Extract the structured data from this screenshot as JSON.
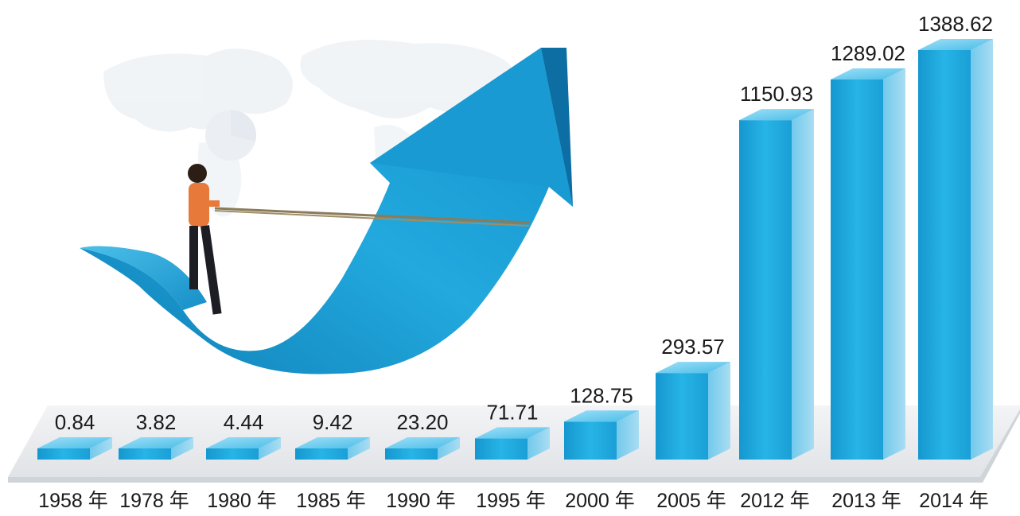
{
  "chart_data": {
    "type": "bar",
    "categories": [
      "1958 年",
      "1978 年",
      "1980 年",
      "1985 年",
      "1990 年",
      "1995 年",
      "2000 年",
      "2005 年",
      "2012 年",
      "2013 年",
      "2014 年"
    ],
    "values": [
      0.84,
      3.82,
      4.44,
      9.42,
      23.2,
      71.71,
      128.75,
      293.57,
      1150.93,
      1289.02,
      1388.62
    ],
    "value_labels": [
      "0.84",
      "3.82",
      "4.44",
      "9.42",
      "23.20",
      "71.71",
      "128.75",
      "293.57",
      "1150.93",
      "1289.02",
      "1388.62"
    ],
    "title": "",
    "xlabel": "",
    "ylabel": "",
    "grid": false,
    "style": "3d-bar",
    "colors": {
      "bar_front": "#1aa6dc",
      "bar_top": "#7fd3f2",
      "bar_side": "#0d84b8",
      "arrow": "#1b9fd4",
      "platform": "#e6e9ec"
    }
  },
  "illustration": {
    "icons": [
      "world-map-icon",
      "growth-arrow-icon",
      "person-pulling-rope-icon"
    ]
  }
}
